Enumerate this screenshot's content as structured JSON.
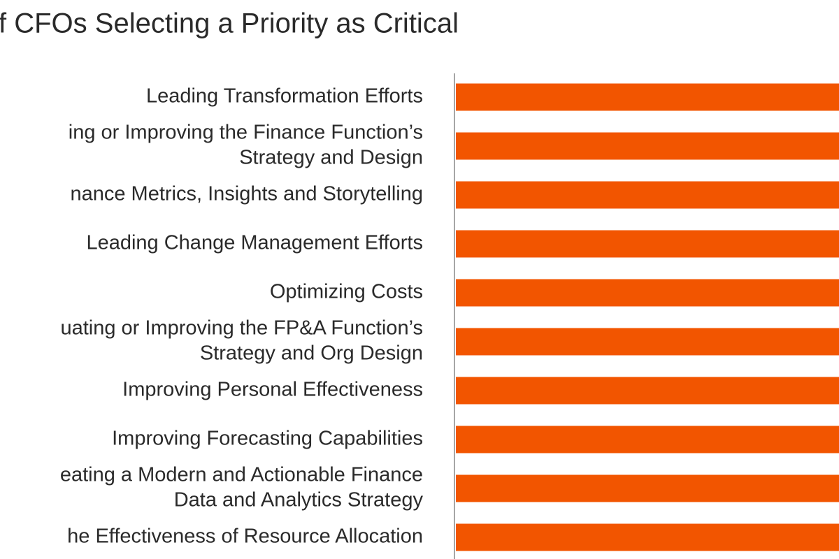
{
  "chart_data": {
    "type": "bar",
    "orientation": "horizontal",
    "title": "f CFOs Selecting a Priority as Critical",
    "categories": [
      [
        "Leading Transformation Efforts"
      ],
      [
        "ing or Improving the Finance Function’s",
        "Strategy and Design"
      ],
      [
        "nance Metrics, Insights and Storytelling"
      ],
      [
        "Leading Change Management Efforts"
      ],
      [
        "Optimizing Costs"
      ],
      [
        "uating or Improving the FP&A Function’s",
        "Strategy and Org Design"
      ],
      [
        "Improving Personal Effectiveness"
      ],
      [
        "Improving Forecasting Capabilities"
      ],
      [
        "eating a Modern and Actionable Finance",
        "Data and Analytics Strategy"
      ],
      [
        "he Effectiveness of Resource Allocation"
      ]
    ],
    "color": "#f25500"
  }
}
